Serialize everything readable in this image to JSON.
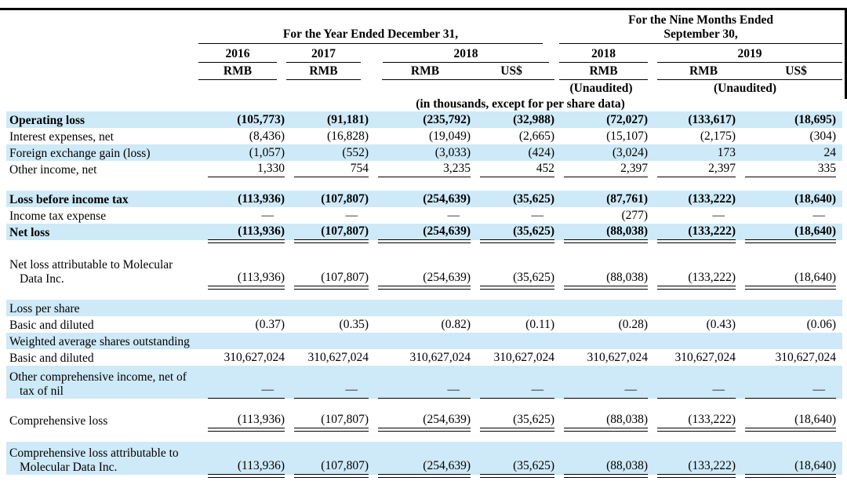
{
  "page": {
    "colors": {
      "highlight": "#cee9f7",
      "text": "#000000",
      "frame": "#000000",
      "background": "#ffffff"
    }
  },
  "table": {
    "col_groups": [
      {
        "label": "For the Year Ended December 31,"
      },
      {
        "label_line1": "For the Nine Months Ended",
        "label_line2": "September 30,"
      }
    ],
    "years": [
      "2016",
      "2017",
      "2018",
      "2018",
      "2019"
    ],
    "currencies": [
      "RMB",
      "RMB",
      "RMB",
      "US$",
      "RMB",
      "RMB",
      "US$"
    ],
    "unaudited_label": "(Unaudited)",
    "units_note": "(in thousands, except for per share data)",
    "rows": [
      {
        "label": "Operating loss",
        "bold": true,
        "highlight": true,
        "underline": "none",
        "values": [
          "(105,773)",
          "(91,181)",
          "(235,792)",
          "(32,988)",
          "(72,027)",
          "(133,617)",
          "(18,695)"
        ]
      },
      {
        "label": "Interest expenses, net",
        "bold": false,
        "highlight": false,
        "underline": "none",
        "values": [
          "(8,436)",
          "(16,828)",
          "(19,049)",
          "(2,665)",
          "(15,107)",
          "(2,175)",
          "(304)"
        ]
      },
      {
        "label": "Foreign exchange gain (loss)",
        "bold": false,
        "highlight": true,
        "underline": "none",
        "values": [
          "(1,057)",
          "(552)",
          "(3,033)",
          "(424)",
          "(3,024)",
          "173",
          "24"
        ]
      },
      {
        "label": "Other income, net",
        "bold": false,
        "highlight": false,
        "underline": "single",
        "gap_after": true,
        "values": [
          "1,330",
          "754",
          "3,235",
          "452",
          "2,397",
          "2,397",
          "335"
        ]
      },
      {
        "label": "Loss before income tax",
        "bold": true,
        "highlight": true,
        "underline": "none",
        "values": [
          "(113,936)",
          "(107,807)",
          "(254,639)",
          "(35,625)",
          "(87,761)",
          "(133,222)",
          "(18,640)"
        ]
      },
      {
        "label": "Income tax expense",
        "bold": false,
        "highlight": false,
        "underline": "none",
        "values": [
          "—",
          "—",
          "—",
          "—",
          "(277)",
          "—",
          "—"
        ]
      },
      {
        "label": "Net loss",
        "bold": true,
        "highlight": true,
        "underline": "double",
        "gap_after": true,
        "values": [
          "(113,936)",
          "(107,807)",
          "(254,639)",
          "(35,625)",
          "(88,038)",
          "(133,222)",
          "(18,640)"
        ]
      },
      {
        "label": "Net loss attributable to Molecular",
        "label2": "Data Inc.",
        "bold": false,
        "highlight": false,
        "underline": "double",
        "gap_after": true,
        "values": [
          "(113,936)",
          "(107,807)",
          "(254,639)",
          "(35,625)",
          "(88,038)",
          "(133,222)",
          "(18,640)"
        ]
      },
      {
        "label": "Loss per share",
        "bold": false,
        "highlight": true,
        "underline": "none",
        "values": null
      },
      {
        "label": "Basic and diluted",
        "bold": false,
        "highlight": false,
        "underline": "none",
        "values": [
          "(0.37)",
          "(0.35)",
          "(0.82)",
          "(0.11)",
          "(0.28)",
          "(0.43)",
          "(0.06)"
        ]
      },
      {
        "label": "Weighted average shares outstanding",
        "bold": false,
        "highlight": true,
        "underline": "none",
        "values": null
      },
      {
        "label": "Basic and diluted",
        "bold": false,
        "highlight": false,
        "underline": "none",
        "values": [
          "310,627,024",
          "310,627,024",
          "310,627,024",
          "310,627,024",
          "310,627,024",
          "310,627,024",
          "310,627,024"
        ]
      },
      {
        "label": "Other comprehensive income, net of",
        "label2": "tax of nil",
        "bold": false,
        "highlight": true,
        "underline": "single",
        "gap_after": true,
        "values": [
          "—",
          "—",
          "—",
          "—",
          "—",
          "—",
          "—"
        ]
      },
      {
        "label": "Comprehensive loss",
        "bold": false,
        "highlight": false,
        "underline": "double",
        "gap_after": true,
        "values": [
          "(113,936)",
          "(107,807)",
          "(254,639)",
          "(35,625)",
          "(88,038)",
          "(133,222)",
          "(18,640)"
        ]
      },
      {
        "label": "Comprehensive loss attributable to",
        "label2": "Molecular Data Inc.",
        "bold": false,
        "highlight": true,
        "underline": "double",
        "values": [
          "(113,936)",
          "(107,807)",
          "(254,639)",
          "(35,625)",
          "(88,038)",
          "(133,222)",
          "(18,640)"
        ]
      }
    ]
  }
}
